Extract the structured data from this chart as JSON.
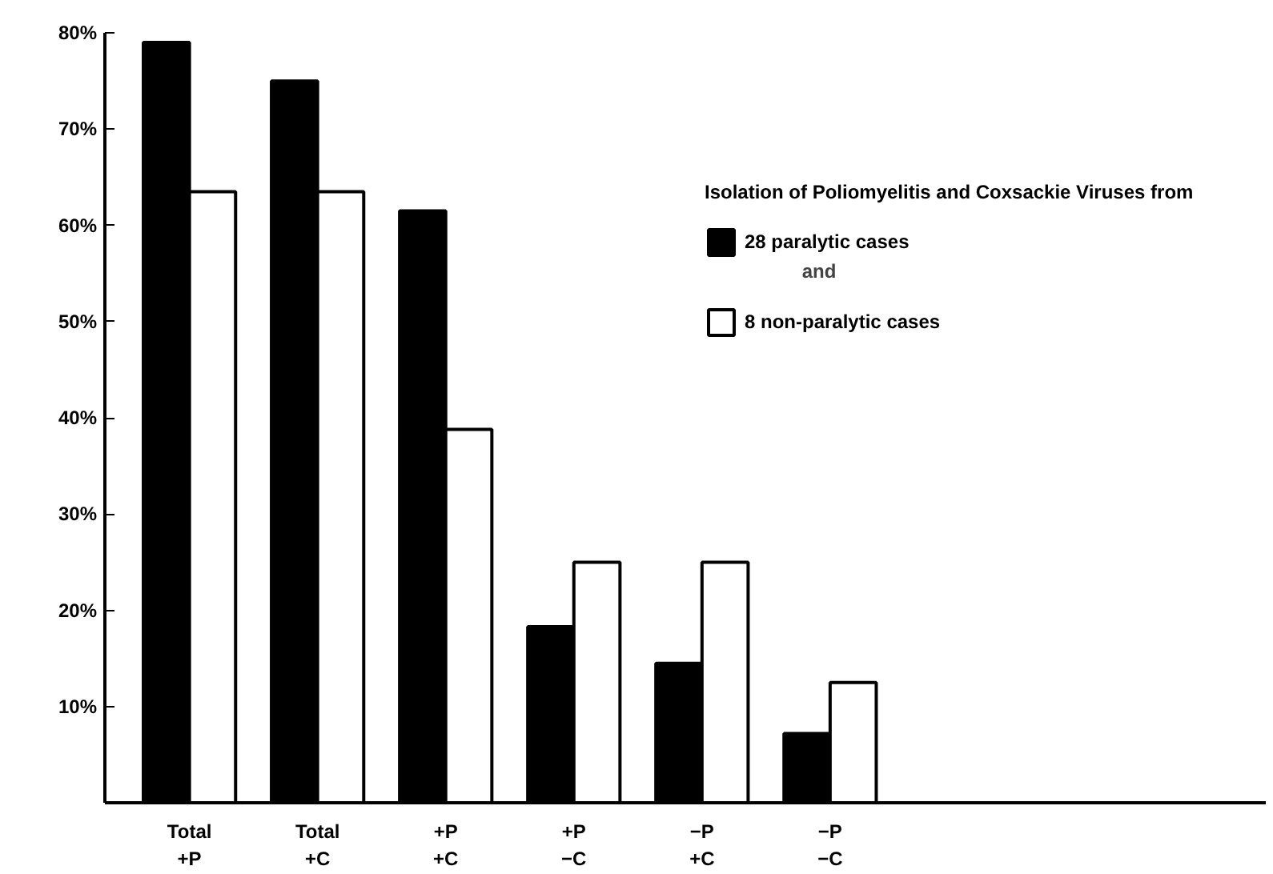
{
  "chart_data": {
    "type": "bar",
    "title": "Isolation of Poliomyelitis and Coxsackie Viruses from",
    "categories": [
      "Total\n+P",
      "Total\n+C",
      "+P\n+C",
      "+P\n−C",
      "−P\n+C",
      "−P\n−C"
    ],
    "series": [
      {
        "name": "28 paralytic cases",
        "color": "#000000",
        "values": [
          79,
          75,
          61.5,
          18.3,
          14.5,
          7.2
        ]
      },
      {
        "name": "8 non-paralytic cases",
        "color": "#ffffff",
        "values": [
          63.5,
          63.5,
          38.8,
          25,
          25,
          12.5
        ]
      }
    ],
    "annotations": [
      "and"
    ],
    "ylim": [
      0,
      80
    ],
    "yticks": [
      {
        "value": 10,
        "label": "10%"
      },
      {
        "value": 20,
        "label": "20%"
      },
      {
        "value": 30,
        "label": "30%"
      },
      {
        "value": 40,
        "label": "40%"
      },
      {
        "value": 50,
        "label": "50%"
      },
      {
        "value": 60,
        "label": "60%"
      },
      {
        "value": 70,
        "label": "70%"
      },
      {
        "value": 80,
        "label": "80%"
      }
    ],
    "grid": false,
    "legend": "right"
  }
}
